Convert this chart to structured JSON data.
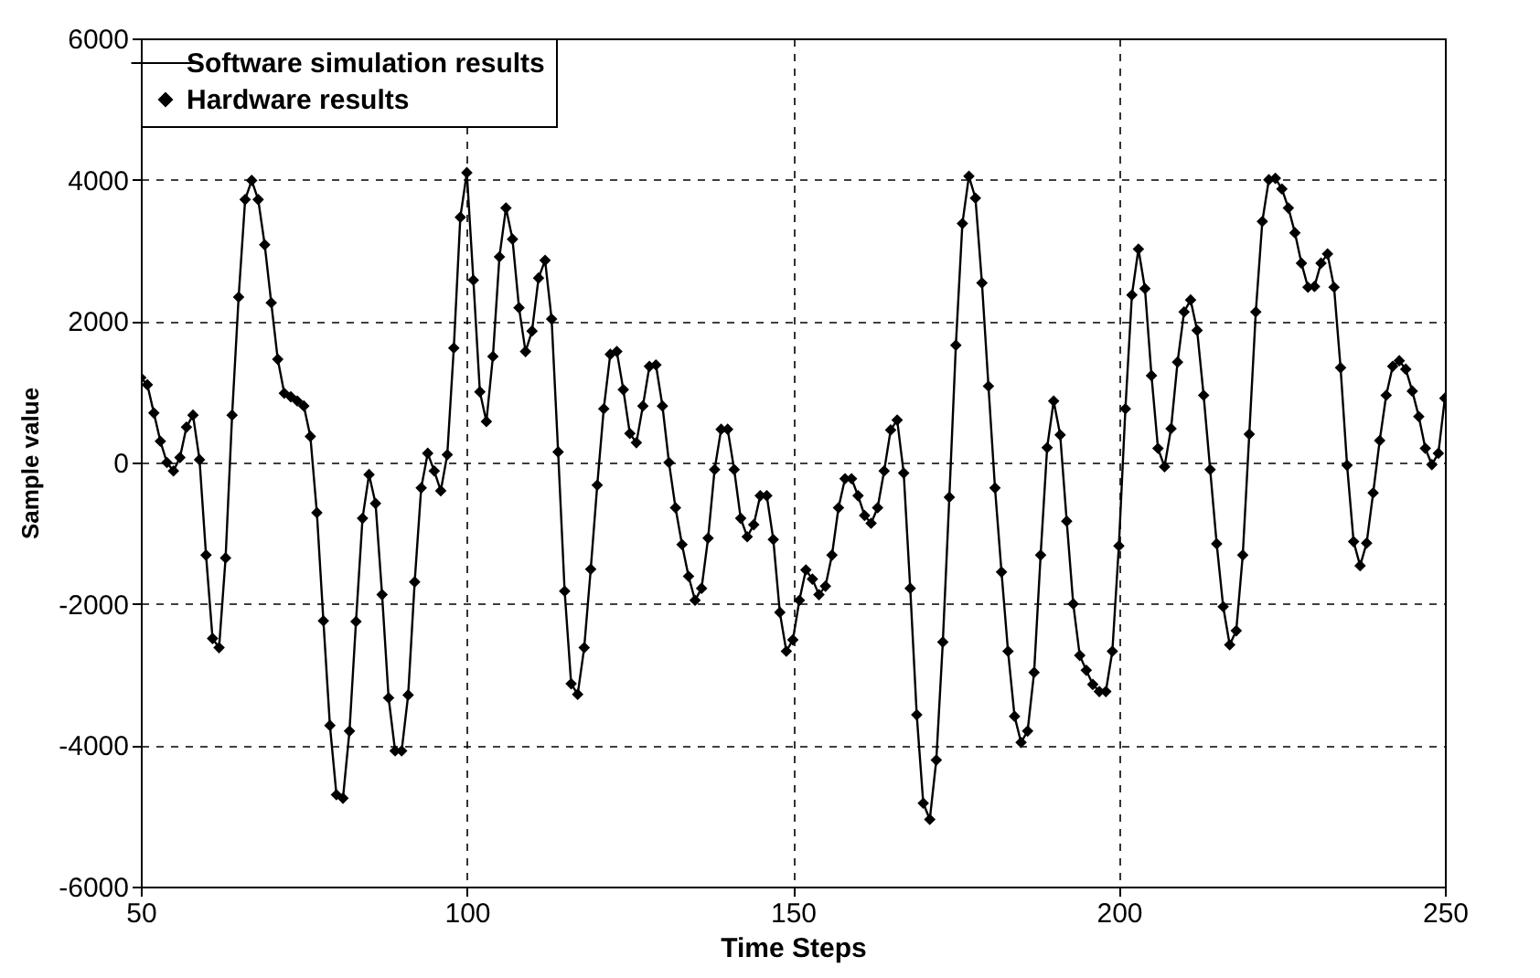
{
  "chart_data": {
    "type": "line",
    "xlabel": "Time Steps",
    "ylabel": "Sample value",
    "x": [
      50,
      51,
      52,
      53,
      54,
      55,
      56,
      57,
      58,
      59,
      60,
      61,
      62,
      63,
      64,
      65,
      66,
      67,
      68,
      69,
      70,
      71,
      72,
      73,
      74,
      75,
      76,
      77,
      78,
      79,
      80,
      81,
      82,
      83,
      84,
      85,
      86,
      87,
      88,
      89,
      90,
      91,
      92,
      93,
      94,
      95,
      96,
      97,
      98,
      99,
      100,
      101,
      102,
      103,
      104,
      105,
      106,
      107,
      108,
      109,
      110,
      111,
      112,
      113,
      114,
      115,
      116,
      117,
      118,
      119,
      120,
      121,
      122,
      123,
      124,
      125,
      126,
      127,
      128,
      129,
      130,
      131,
      132,
      133,
      134,
      135,
      136,
      137,
      138,
      139,
      140,
      141,
      142,
      143,
      144,
      145,
      146,
      147,
      148,
      149,
      150,
      151,
      152,
      153,
      154,
      155,
      156,
      157,
      158,
      159,
      160,
      161,
      162,
      163,
      164,
      165,
      166,
      167,
      168,
      169,
      170,
      171,
      172,
      173,
      174,
      175,
      176,
      177,
      178,
      179,
      180,
      181,
      182,
      183,
      184,
      185,
      186,
      187,
      188,
      189,
      190,
      191,
      192,
      193,
      194,
      195,
      196,
      197,
      198,
      199,
      200,
      201,
      202,
      203,
      204,
      205,
      206,
      207,
      208,
      209,
      210,
      211,
      212,
      213,
      214,
      215,
      216,
      217,
      218,
      219,
      220,
      221,
      222,
      223,
      224,
      225,
      226,
      227,
      228,
      229,
      230,
      231,
      232,
      233,
      234,
      235,
      236,
      237,
      238,
      239,
      240,
      241,
      242,
      243,
      244,
      245,
      246,
      247,
      248,
      249,
      250
    ],
    "series": [
      {
        "name": "Software simulation results",
        "marker": "none",
        "color": "#000000",
        "values": [
          1200,
          1100,
          700,
          300,
          0,
          -120,
          70,
          500,
          670,
          40,
          -1310,
          -2490,
          -2620,
          -1350,
          670,
          2340,
          3720,
          3990,
          3720,
          3080,
          2260,
          1460,
          980,
          930,
          870,
          800,
          370,
          -710,
          -2240,
          -3720,
          -4700,
          -4750,
          -3800,
          -2250,
          -790,
          -170,
          -580,
          -1870,
          -3330,
          -4080,
          -4080,
          -3290,
          -1690,
          -360,
          130,
          -120,
          -400,
          110,
          1620,
          3470,
          4100,
          2580,
          1000,
          580,
          1500,
          2910,
          3600,
          3160,
          2190,
          1570,
          1860,
          2610,
          2860,
          2030,
          150,
          -1820,
          -3130,
          -3280,
          -2620,
          -1510,
          -320,
          760,
          1530,
          1570,
          1030,
          410,
          280,
          800,
          1360,
          1380,
          800,
          0,
          -640,
          -1160,
          -1610,
          -1950,
          -1780,
          -1070,
          -100,
          470,
          470,
          -100,
          -790,
          -1050,
          -880,
          -470,
          -470,
          -1090,
          -2120,
          -2670,
          -2510,
          -1950,
          -1520,
          -1650,
          -1870,
          -1750,
          -1310,
          -640,
          -230,
          -230,
          -470,
          -750,
          -860,
          -640,
          -120,
          460,
          600,
          -150,
          -1780,
          -3570,
          -4820,
          -5050,
          -4210,
          -2540,
          -490,
          1660,
          3380,
          4050,
          3740,
          2540,
          1080,
          -360,
          -1550,
          -2670,
          -3590,
          -3960,
          -3800,
          -2970,
          -1310,
          210,
          870,
          390,
          -830,
          -2000,
          -2730,
          -2940,
          -3140,
          -3240,
          -3240,
          -2670,
          -1180,
          760,
          2370,
          3020,
          2460,
          1230,
          200,
          -60,
          480,
          1420,
          2130,
          2300,
          1870,
          950,
          -100,
          -1150,
          -2040,
          -2580,
          -2380,
          -1310,
          400,
          2130,
          3410,
          4000,
          4020,
          3870,
          3600,
          3250,
          2820,
          2480,
          2490,
          2820,
          2950,
          2480,
          1340,
          -40,
          -1120,
          -1460,
          -1140,
          -430,
          310,
          950,
          1360,
          1440,
          1320,
          1010,
          650,
          200,
          -30,
          130,
          910
        ]
      },
      {
        "name": "Hardware results",
        "type": "scatter",
        "marker": "diamond",
        "color": "#000000",
        "values": [
          1200,
          1100,
          700,
          300,
          0,
          -120,
          70,
          500,
          670,
          40,
          -1310,
          -2490,
          -2620,
          -1350,
          670,
          2340,
          3720,
          3990,
          3720,
          3080,
          2260,
          1460,
          980,
          930,
          870,
          800,
          370,
          -710,
          -2240,
          -3720,
          -4700,
          -4750,
          -3800,
          -2250,
          -790,
          -170,
          -580,
          -1870,
          -3330,
          -4080,
          -4080,
          -3290,
          -1690,
          -360,
          130,
          -120,
          -400,
          110,
          1620,
          3470,
          4100,
          2580,
          1000,
          580,
          1500,
          2910,
          3600,
          3160,
          2190,
          1570,
          1860,
          2610,
          2860,
          2030,
          150,
          -1820,
          -3130,
          -3280,
          -2620,
          -1510,
          -320,
          760,
          1530,
          1570,
          1030,
          410,
          280,
          800,
          1360,
          1380,
          800,
          0,
          -640,
          -1160,
          -1610,
          -1950,
          -1780,
          -1070,
          -100,
          470,
          470,
          -100,
          -790,
          -1050,
          -880,
          -470,
          -470,
          -1090,
          -2120,
          -2670,
          -2510,
          -1950,
          -1520,
          -1650,
          -1870,
          -1750,
          -1310,
          -640,
          -230,
          -230,
          -470,
          -750,
          -860,
          -640,
          -120,
          460,
          600,
          -150,
          -1780,
          -3570,
          -4820,
          -5050,
          -4210,
          -2540,
          -490,
          1660,
          3380,
          4050,
          3740,
          2540,
          1080,
          -360,
          -1550,
          -2670,
          -3590,
          -3960,
          -3800,
          -2970,
          -1310,
          210,
          870,
          390,
          -830,
          -2000,
          -2730,
          -2940,
          -3140,
          -3240,
          -3240,
          -2670,
          -1180,
          760,
          2370,
          3020,
          2460,
          1230,
          200,
          -60,
          480,
          1420,
          2130,
          2300,
          1870,
          950,
          -100,
          -1150,
          -2040,
          -2580,
          -2380,
          -1310,
          400,
          2130,
          3410,
          4000,
          4020,
          3870,
          3600,
          3250,
          2820,
          2480,
          2490,
          2820,
          2950,
          2480,
          1340,
          -40,
          -1120,
          -1460,
          -1140,
          -430,
          310,
          950,
          1360,
          1440,
          1320,
          1010,
          650,
          200,
          -30,
          130,
          910
        ]
      }
    ],
    "xlim": [
      50,
      250
    ],
    "xticks": [
      50,
      100,
      150,
      200,
      250
    ],
    "ylim": [
      -6000,
      6000
    ],
    "yticks": [
      -6000,
      -4000,
      -2000,
      0,
      2000,
      4000,
      6000
    ],
    "grid": true,
    "legend": "top left",
    "line_style": "solid"
  }
}
